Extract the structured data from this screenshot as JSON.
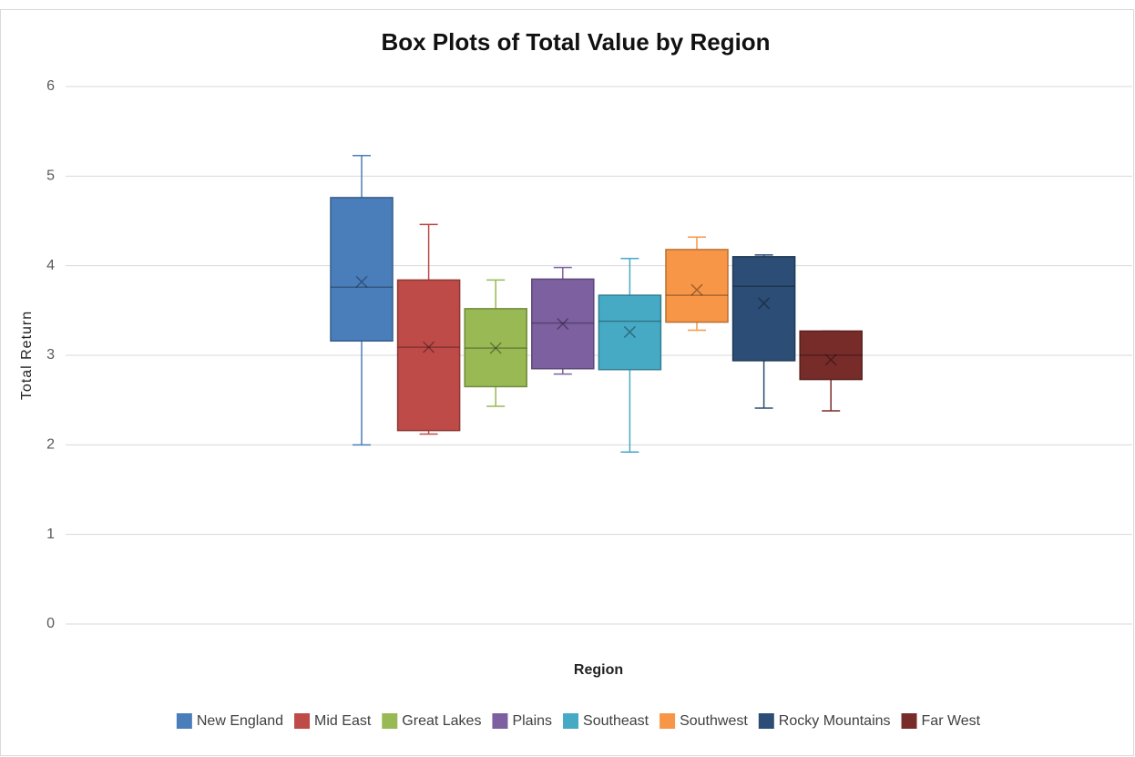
{
  "chart_data": {
    "type": "box",
    "title": "Box Plots of Total Value by Region",
    "x_label": "Region",
    "y_label": "Total Return",
    "ylim": [
      0,
      6
    ],
    "yticks": [
      0,
      1,
      2,
      3,
      4,
      5,
      6
    ],
    "grid": true,
    "legend": "bottom",
    "series": [
      {
        "name": "New England",
        "color": "#4a7ebb",
        "min": 2.0,
        "q1": 3.16,
        "median": 3.76,
        "q3": 4.76,
        "max": 5.23,
        "mean": 3.82
      },
      {
        "name": "Mid East",
        "color": "#be4b48",
        "min": 2.12,
        "q1": 2.16,
        "median": 3.09,
        "q3": 3.84,
        "max": 4.46,
        "mean": 3.09
      },
      {
        "name": "Great Lakes",
        "color": "#98b954",
        "min": 2.43,
        "q1": 2.65,
        "median": 3.08,
        "q3": 3.52,
        "max": 3.84,
        "mean": 3.08
      },
      {
        "name": "Plains",
        "color": "#7d60a0",
        "min": 2.79,
        "q1": 2.85,
        "median": 3.36,
        "q3": 3.85,
        "max": 3.98,
        "mean": 3.35
      },
      {
        "name": "Southeast",
        "color": "#46aac5",
        "min": 1.92,
        "q1": 2.84,
        "median": 3.38,
        "q3": 3.67,
        "max": 4.08,
        "mean": 3.26
      },
      {
        "name": "Southwest",
        "color": "#f79646",
        "min": 3.28,
        "q1": 3.37,
        "median": 3.67,
        "q3": 4.18,
        "max": 4.32,
        "mean": 3.73
      },
      {
        "name": "Rocky Mountains",
        "color": "#2c4d75",
        "min": 2.41,
        "q1": 2.94,
        "median": 3.77,
        "q3": 4.1,
        "max": 4.12,
        "mean": 3.58
      },
      {
        "name": "Far West",
        "color": "#772c2a",
        "min": 2.38,
        "q1": 2.73,
        "median": 3.0,
        "q3": 3.27,
        "max": 3.27,
        "mean": 2.95
      }
    ]
  }
}
